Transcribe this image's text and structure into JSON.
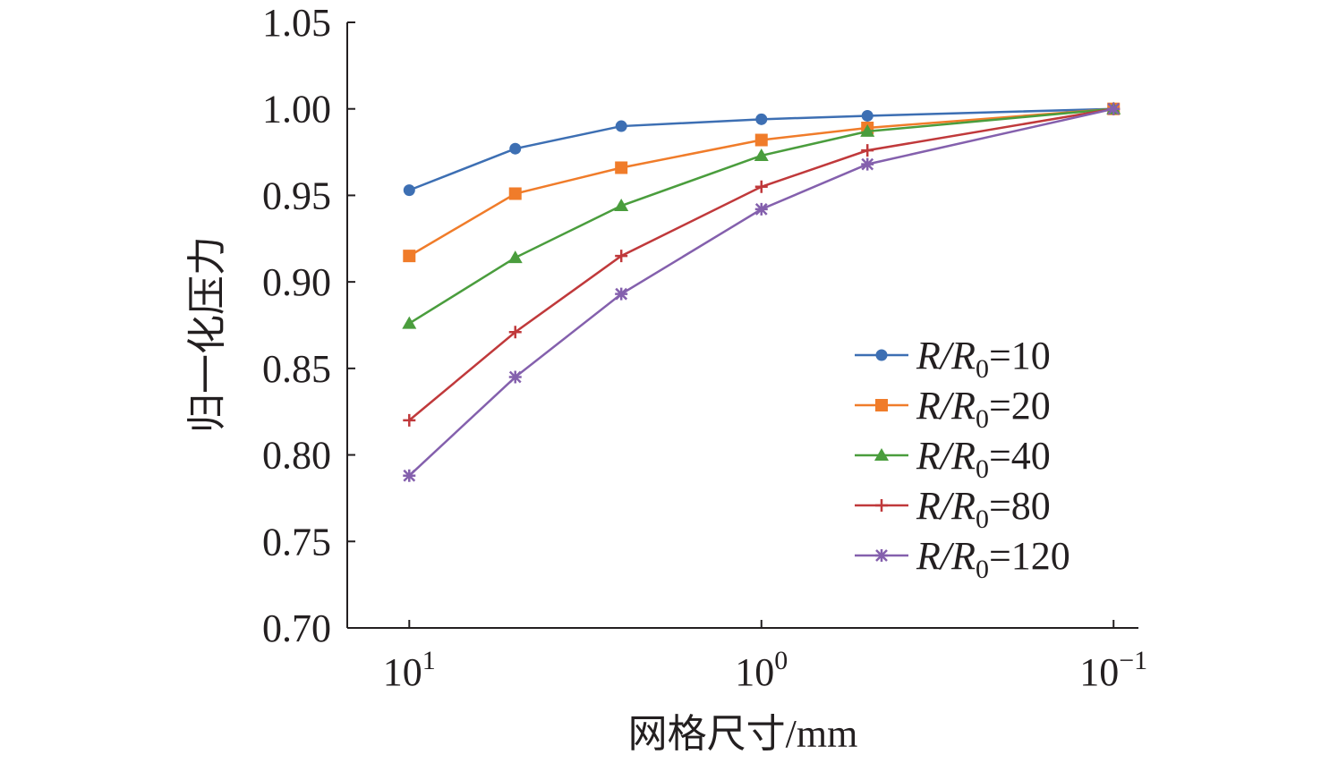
{
  "chart_data": {
    "type": "line",
    "xscale": "log",
    "x_reversed": true,
    "xlabel": "网格尺寸/mm",
    "ylabel": "归一化压力",
    "title": "",
    "xlim": [
      15,
      0.085
    ],
    "ylim": [
      0.7,
      1.05
    ],
    "grid": false,
    "legend_position": "right-middle",
    "x_ticks": [
      {
        "value": 10,
        "base": "10",
        "exp": "1"
      },
      {
        "value": 1,
        "base": "10",
        "exp": "0"
      },
      {
        "value": 0.1,
        "base": "10",
        "exp": "−1"
      }
    ],
    "y_ticks": [
      "1.05",
      "1.00",
      "0.95",
      "0.90",
      "0.85",
      "0.80",
      "0.75",
      "0.70"
    ],
    "x": [
      10,
      5,
      2.5,
      1,
      0.5,
      0.1
    ],
    "series": [
      {
        "name": "R/R0=10",
        "label_italic": "R/R",
        "label_sub": "0",
        "label_rest": "=10",
        "color": "#3d6fb3",
        "marker": "circle",
        "values": [
          0.953,
          0.977,
          0.99,
          0.994,
          0.996,
          1.0
        ]
      },
      {
        "name": "R/R0=20",
        "label_italic": "R/R",
        "label_sub": "0",
        "label_rest": "=20",
        "color": "#f07c2a",
        "marker": "square",
        "values": [
          0.915,
          0.951,
          0.966,
          0.982,
          0.989,
          1.0
        ]
      },
      {
        "name": "R/R0=40",
        "label_italic": "R/R",
        "label_sub": "0",
        "label_rest": "=40",
        "color": "#4a9d3d",
        "marker": "triangle",
        "values": [
          0.876,
          0.914,
          0.944,
          0.973,
          0.987,
          1.0
        ]
      },
      {
        "name": "R/R0=80",
        "label_italic": "R/R",
        "label_sub": "0",
        "label_rest": "=80",
        "color": "#c0393b",
        "marker": "plus",
        "values": [
          0.82,
          0.871,
          0.915,
          0.955,
          0.976,
          1.0
        ]
      },
      {
        "name": "R/R0=120",
        "label_italic": "R/R",
        "label_sub": "0",
        "label_rest": "=120",
        "color": "#8460ad",
        "marker": "star",
        "values": [
          0.788,
          0.845,
          0.893,
          0.942,
          0.968,
          1.0
        ]
      }
    ]
  }
}
